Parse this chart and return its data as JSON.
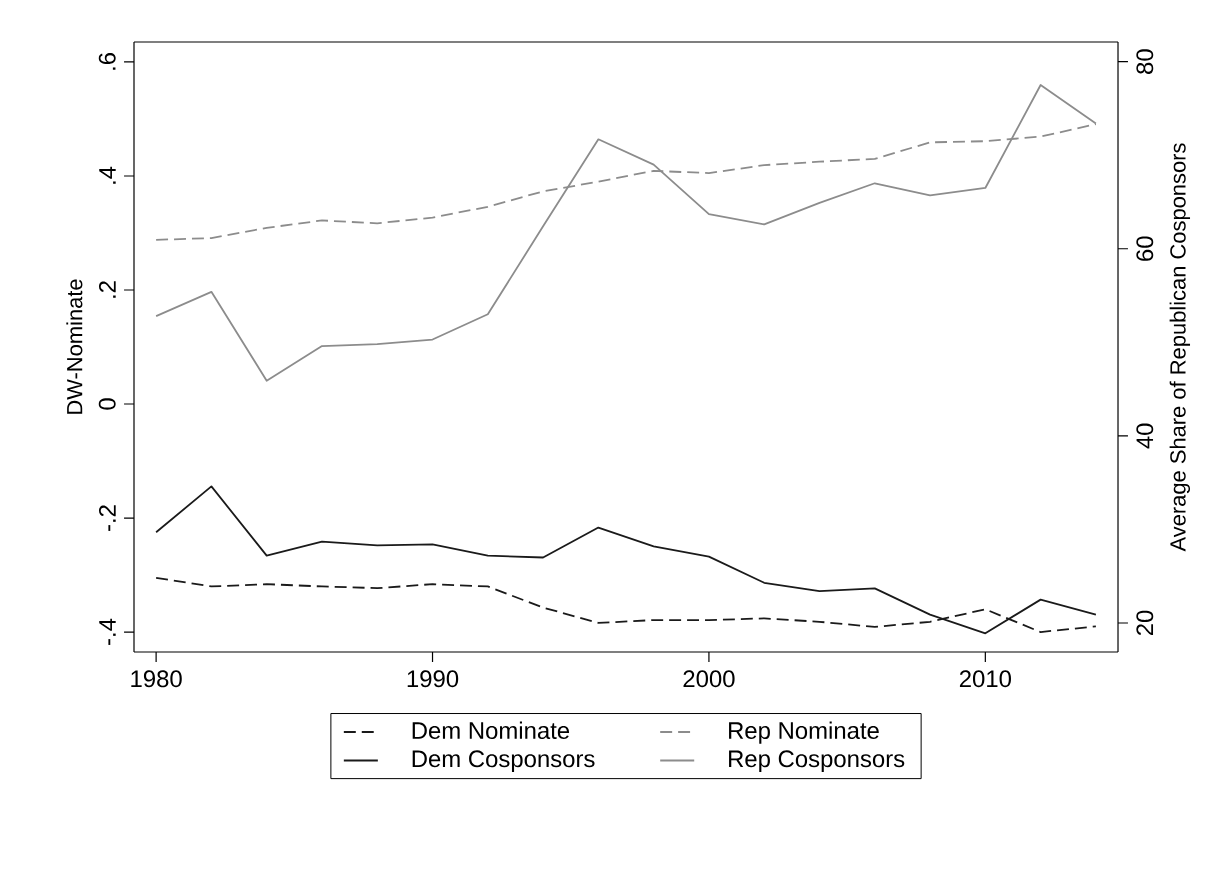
{
  "chart_data": {
    "type": "line",
    "ylabel": "DW-Nominate",
    "y2label": "Average Share of Republican Cosponsors",
    "x": [
      1980,
      1982,
      1984,
      1986,
      1988,
      1990,
      1992,
      1994,
      1996,
      1998,
      2000,
      2002,
      2004,
      2006,
      2008,
      2010,
      2012,
      2014
    ],
    "xlim": [
      1979.2,
      2014.8
    ],
    "xticks": [
      1980,
      1990,
      2000,
      2010
    ],
    "ylim": [
      -0.435,
      0.635
    ],
    "yticks": [
      {
        "value": -0.4,
        "label": "-.4"
      },
      {
        "value": -0.2,
        "label": "-.2"
      },
      0,
      {
        "value": 0.2,
        "label": ".2"
      },
      {
        "value": 0.4,
        "label": ".4"
      },
      {
        "value": 0.6,
        "label": ".6"
      }
    ],
    "y2lim": [
      16.9,
      82.1
    ],
    "y2ticks": [
      20,
      40,
      60,
      80
    ],
    "grid": false,
    "legend": "bottom",
    "marker": "none",
    "series": [
      {
        "name": "Dem Nominate",
        "color": "#1a1a1a",
        "line_style": "dashed",
        "values": [
          -0.305,
          -0.32,
          -0.316,
          -0.32,
          -0.323,
          -0.316,
          -0.32,
          -0.357,
          -0.384,
          -0.379,
          -0.379,
          -0.376,
          -0.382,
          -0.391,
          -0.382,
          -0.36,
          -0.4,
          -0.39
        ]
      },
      {
        "name": "Rep Nominate",
        "color": "#8c8c8c",
        "line_style": "dashed",
        "values": [
          0.288,
          0.291,
          0.309,
          0.322,
          0.317,
          0.327,
          0.346,
          0.373,
          0.39,
          0.409,
          0.405,
          0.419,
          0.425,
          0.43,
          0.459,
          0.461,
          0.469,
          0.491
        ]
      },
      {
        "name": "Dem Cosponsors",
        "color": "#1a1a1a",
        "line_style": "solid",
        "axis": "y2",
        "values": [
          29.7,
          34.6,
          27.2,
          28.7,
          28.3,
          28.4,
          27.2,
          27.0,
          30.2,
          28.2,
          27.1,
          24.3,
          23.4,
          23.7,
          20.9,
          18.9,
          22.5,
          20.9
        ]
      },
      {
        "name": "Rep Cosponsors",
        "color": "#8c8c8c",
        "line_style": "solid",
        "axis": "y2",
        "values": [
          52.8,
          55.4,
          45.9,
          49.6,
          49.8,
          50.3,
          53.0,
          62.4,
          71.7,
          69.0,
          63.7,
          62.6,
          64.9,
          67.0,
          65.7,
          66.5,
          77.5,
          73.4
        ]
      }
    ]
  }
}
